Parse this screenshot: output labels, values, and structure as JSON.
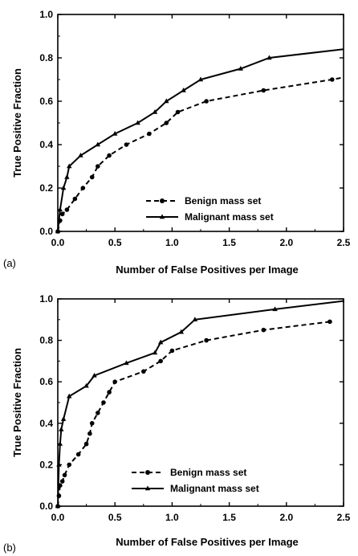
{
  "chart_data": [
    {
      "type": "line",
      "panel_label": "(a)",
      "xlabel": "Number of False Positives per Image",
      "ylabel": "True Positive Fraction",
      "xlim": [
        0,
        2.5
      ],
      "ylim": [
        0,
        1.0
      ],
      "xticks": [
        "0.0",
        "0.5",
        "1.0",
        "1.5",
        "2.0",
        "2.5"
      ],
      "yticks": [
        "0.0",
        "0.2",
        "0.4",
        "0.6",
        "0.8",
        "1.0"
      ],
      "legend_position": "bottom-right",
      "series": [
        {
          "name": "Benign mass set",
          "style": "dashed",
          "marker": "circle",
          "color": "#000000",
          "x": [
            0,
            0.02,
            0.04,
            0.08,
            0.15,
            0.22,
            0.3,
            0.35,
            0.45,
            0.6,
            0.8,
            0.95,
            1.05,
            1.3,
            1.8,
            2.4,
            2.5
          ],
          "y": [
            0,
            0.05,
            0.08,
            0.1,
            0.15,
            0.2,
            0.25,
            0.3,
            0.35,
            0.4,
            0.45,
            0.5,
            0.55,
            0.6,
            0.65,
            0.7,
            0.71
          ]
        },
        {
          "name": "Malignant mass set",
          "style": "solid",
          "marker": "triangle",
          "color": "#000000",
          "x": [
            0,
            0.02,
            0.05,
            0.08,
            0.1,
            0.2,
            0.35,
            0.5,
            0.7,
            0.85,
            0.95,
            1.1,
            1.25,
            1.6,
            1.85,
            2.5
          ],
          "y": [
            0,
            0.1,
            0.2,
            0.25,
            0.3,
            0.35,
            0.4,
            0.45,
            0.5,
            0.55,
            0.6,
            0.65,
            0.7,
            0.75,
            0.8,
            0.84
          ]
        }
      ]
    },
    {
      "type": "line",
      "panel_label": "(b)",
      "xlabel": "Number of False Positives per Image",
      "ylabel": "True Positive Fraction",
      "xlim": [
        0,
        2.5
      ],
      "ylim": [
        0,
        1.0
      ],
      "xticks": [
        "0.0",
        "0.5",
        "1.0",
        "1.5",
        "2.0",
        "2.5"
      ],
      "yticks": [
        "0.0",
        "0.2",
        "0.4",
        "0.6",
        "0.8",
        "1.0"
      ],
      "legend_position": "bottom-right",
      "series": [
        {
          "name": "Benign mass set",
          "style": "dashed",
          "marker": "circle",
          "color": "#000000",
          "x": [
            0,
            0.01,
            0.02,
            0.04,
            0.06,
            0.1,
            0.18,
            0.25,
            0.28,
            0.3,
            0.35,
            0.4,
            0.45,
            0.5,
            0.75,
            0.9,
            1.0,
            1.3,
            1.8,
            2.38
          ],
          "y": [
            0,
            0.05,
            0.1,
            0.12,
            0.15,
            0.2,
            0.25,
            0.3,
            0.35,
            0.4,
            0.45,
            0.5,
            0.55,
            0.6,
            0.65,
            0.7,
            0.75,
            0.8,
            0.85,
            0.89
          ]
        },
        {
          "name": "Malignant mass set",
          "style": "solid",
          "marker": "triangle",
          "color": "#000000",
          "x": [
            0,
            0.01,
            0.02,
            0.03,
            0.05,
            0.1,
            0.25,
            0.32,
            0.6,
            0.85,
            0.9,
            1.08,
            1.2,
            1.9,
            2.5
          ],
          "y": [
            0,
            0.2,
            0.3,
            0.37,
            0.42,
            0.53,
            0.58,
            0.63,
            0.69,
            0.74,
            0.79,
            0.84,
            0.9,
            0.95,
            0.99
          ]
        }
      ]
    }
  ]
}
